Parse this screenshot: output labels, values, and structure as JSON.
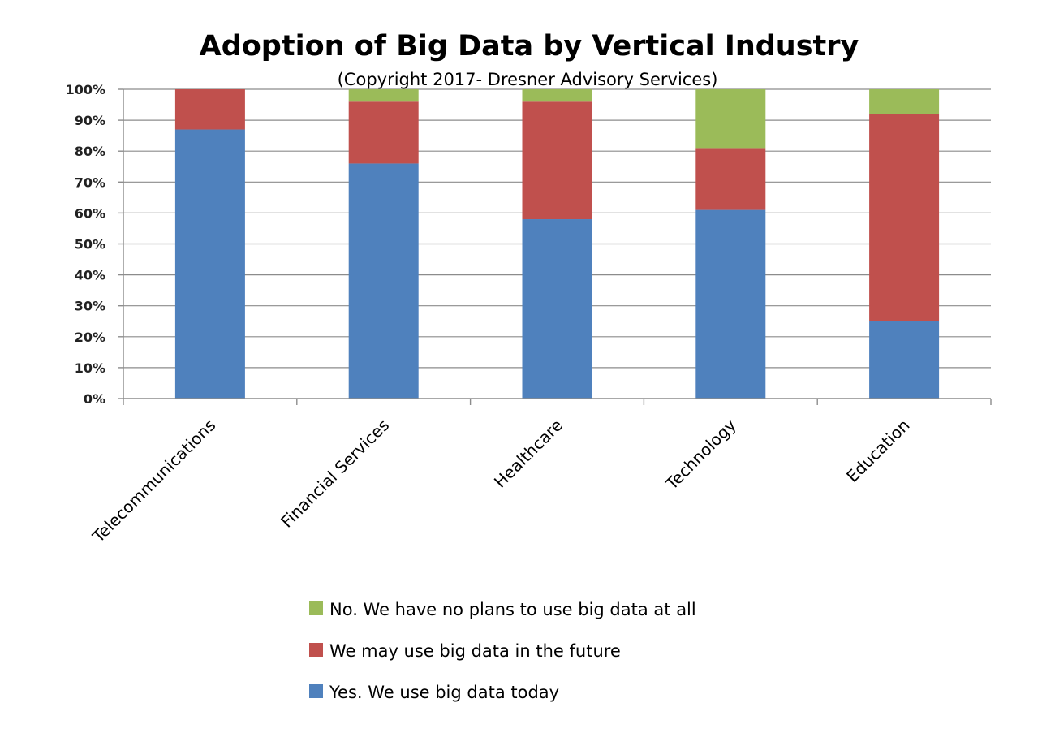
{
  "chart_data": {
    "type": "bar",
    "stacked": true,
    "title": "Adoption of Big Data by Vertical Industry",
    "subtitle": "(Copyright 2017- Dresner Advisory Services)",
    "categories": [
      "Telecommunications",
      "Financial Services",
      "Healthcare",
      "Technology",
      "Education"
    ],
    "series": [
      {
        "name": "Yes. We use big data today",
        "color": "#4f81bd",
        "values": [
          87,
          76,
          58,
          61,
          25
        ]
      },
      {
        "name": "We may use big data in the future",
        "color": "#c0504d",
        "values": [
          13,
          20,
          38,
          20,
          67
        ]
      },
      {
        "name": "No. We have no plans to use big data at all",
        "color": "#9bbb59",
        "values": [
          0,
          4,
          4,
          19,
          8
        ]
      }
    ],
    "legend_order": [
      2,
      1,
      0
    ],
    "ylim": [
      0,
      100
    ],
    "yticks": [
      "0%",
      "10%",
      "20%",
      "30%",
      "40%",
      "50%",
      "60%",
      "70%",
      "80%",
      "90%",
      "100%"
    ],
    "xlabel": "",
    "ylabel": "",
    "grid": true,
    "legend_position": "bottom"
  }
}
